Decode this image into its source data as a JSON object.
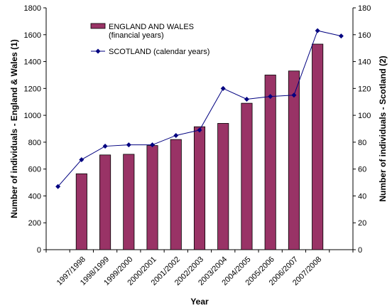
{
  "chart_data": {
    "type": "bar_line",
    "xlabel": "Year",
    "ylabel": "Number of individuals - England & Wales (1)",
    "y2label": "Number of individuals - Scotland (2)",
    "categories": [
      null,
      "1997/1998",
      "1998/1999",
      "1999/2000",
      "2000/2001",
      "2001/2002",
      "2002/2003",
      "2003/2004",
      "2004/2005",
      "2005/2006",
      "2006/2007",
      "2007/2008",
      null
    ],
    "series": [
      {
        "name": "ENGLAND AND WALES\n(financial years)",
        "type": "bar",
        "color": "#993366",
        "values": [
          null,
          565,
          705,
          710,
          775,
          820,
          915,
          940,
          1090,
          1300,
          1330,
          1530,
          null
        ]
      },
      {
        "name": "SCOTLAND (calendar years)",
        "type": "line",
        "color": "#000080",
        "axis": "y2",
        "values": [
          47,
          67,
          77,
          78,
          78,
          85,
          89,
          120,
          112,
          114,
          115,
          163,
          159
        ]
      }
    ],
    "ylim": [
      0,
      1800
    ],
    "yticks": [
      0,
      200,
      400,
      600,
      800,
      1000,
      1200,
      1400,
      1600,
      1800
    ],
    "y2lim": [
      0,
      180
    ],
    "y2ticks": [
      0,
      20,
      40,
      60,
      80,
      100,
      120,
      140,
      160,
      180
    ],
    "legend": "top-left"
  }
}
